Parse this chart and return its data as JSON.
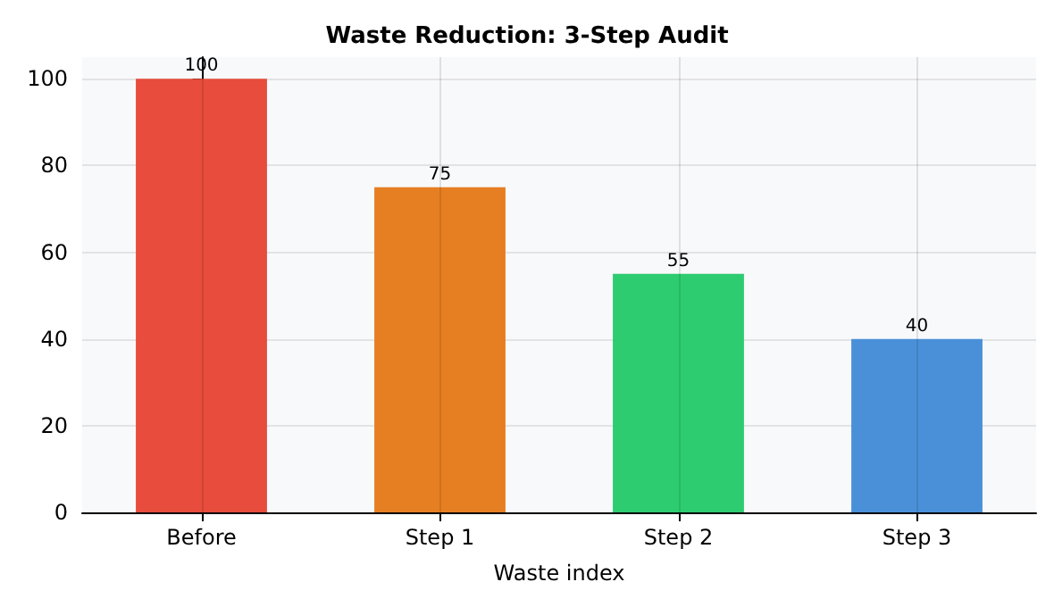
{
  "chart_data": {
    "type": "bar",
    "title": "Waste Reduction: 3-Step Audit",
    "xlabel": "Waste index",
    "categories": [
      "Before",
      "Step 1",
      "Step 2",
      "Step 3"
    ],
    "values": [
      100,
      75,
      55,
      40
    ],
    "colors": [
      "#e74c3c",
      "#e67e22",
      "#2ecc71",
      "#4a90d9"
    ],
    "ylim": [
      0,
      105
    ],
    "yticks": [
      0,
      20,
      40,
      60,
      80,
      100
    ],
    "grid": true,
    "data_labels": true
  }
}
